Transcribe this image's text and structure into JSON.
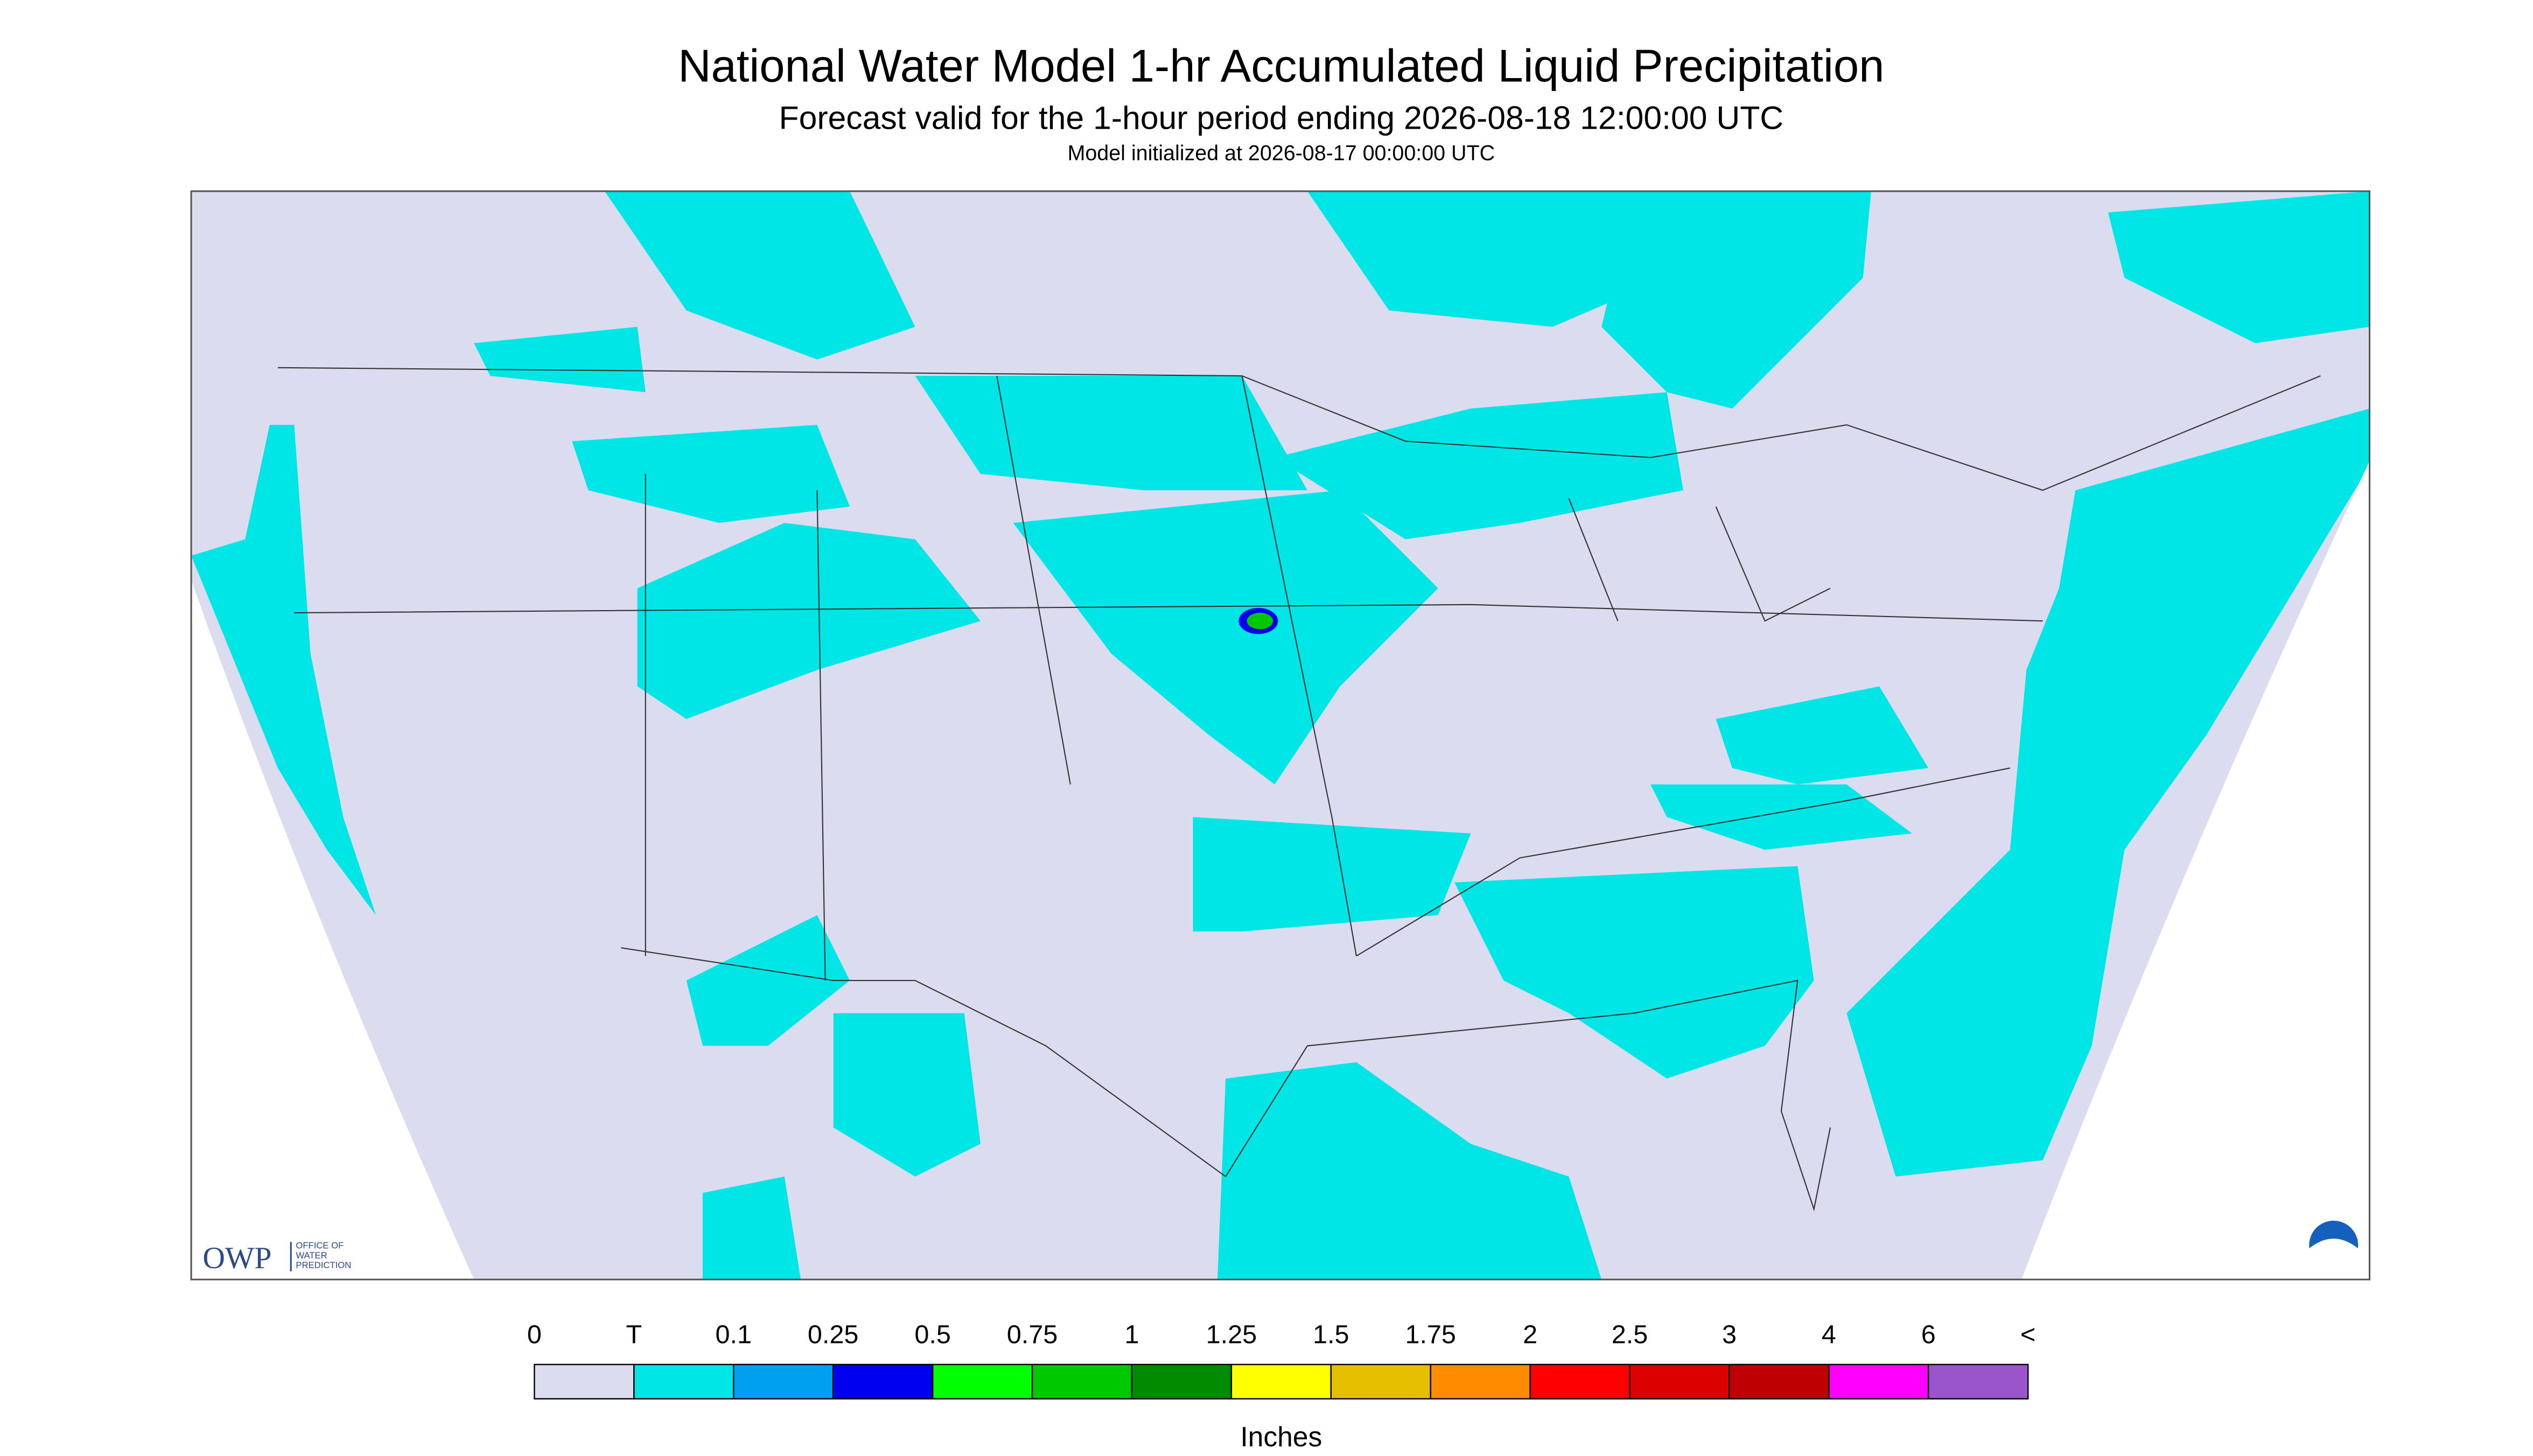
{
  "header": {
    "title": "National Water Model 1-hr Accumulated Liquid Precipitation",
    "subtitle": "Forecast valid for the 1-hour period ending 2026-08-18 12:00:00 UTC",
    "note": "Model initialized at 2026-08-17 00:00:00 UTC"
  },
  "logo": {
    "name": "OWP",
    "text": [
      "OFFICE OF",
      "WATER",
      "PREDICTION"
    ]
  },
  "legend": {
    "labels": [
      "0",
      "T",
      "0.1",
      "0.25",
      "0.5",
      "0.75",
      "1",
      "1.25",
      "1.5",
      "1.75",
      "2",
      "2.5",
      "3",
      "4",
      "6",
      "<"
    ],
    "colors": [
      "#dcdcf0",
      "#00e6e6",
      "#00a0f0",
      "#0000f0",
      "#00ff00",
      "#00c800",
      "#008c00",
      "#ffff00",
      "#e6be00",
      "#ff8c00",
      "#ff0000",
      "#dc0000",
      "#be0000",
      "#ff00ff",
      "#9955c9"
    ],
    "unit": "Inches"
  }
}
